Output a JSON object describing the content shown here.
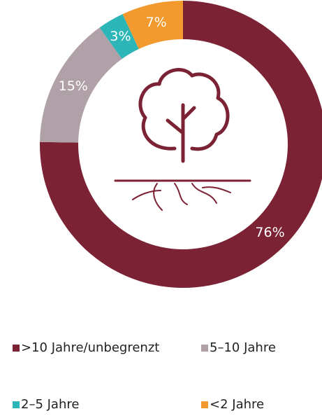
{
  "chart_data": {
    "type": "pie",
    "donut": true,
    "categories": [
      ">10 Jahre/unbegrenzt",
      "5–10 Jahre",
      "2–5 Jahre",
      "<2 Jahre"
    ],
    "values": [
      76,
      15,
      3,
      7
    ],
    "value_labels": [
      "76%",
      "15%",
      "3%",
      "7%"
    ],
    "colors": [
      "#7b2234",
      "#b0a0a7",
      "#2db6b8",
      "#f29a2e"
    ]
  }
}
